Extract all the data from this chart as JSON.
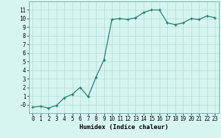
{
  "x": [
    0,
    1,
    2,
    3,
    4,
    5,
    6,
    7,
    8,
    9,
    10,
    11,
    12,
    13,
    14,
    15,
    16,
    17,
    18,
    19,
    20,
    21,
    22,
    23
  ],
  "y": [
    -0.3,
    -0.2,
    -0.4,
    -0.1,
    0.8,
    1.2,
    2.0,
    0.9,
    3.2,
    5.2,
    9.9,
    10.0,
    9.9,
    10.1,
    10.7,
    11.0,
    11.0,
    9.5,
    9.3,
    9.5,
    10.0,
    9.9,
    10.3,
    10.1
  ],
  "line_color": "#1a7a6e",
  "marker": "+",
  "bg_color": "#d6f5f0",
  "grid_color": "#b8ddd8",
  "xlabel": "Humidex (Indice chaleur)",
  "xlim": [
    -0.5,
    23.5
  ],
  "ylim": [
    -1,
    12
  ],
  "xticks": [
    0,
    1,
    2,
    3,
    4,
    5,
    6,
    7,
    8,
    9,
    10,
    11,
    12,
    13,
    14,
    15,
    16,
    17,
    18,
    19,
    20,
    21,
    22,
    23
  ],
  "xtick_labels": [
    "0",
    "1",
    "2",
    "3",
    "4",
    "5",
    "6",
    "7",
    "8",
    "9",
    "10",
    "11",
    "12",
    "13",
    "14",
    "15",
    "16",
    "17",
    "18",
    "19",
    "20",
    "21",
    "22",
    "23"
  ],
  "yticks": [
    0,
    1,
    2,
    3,
    4,
    5,
    6,
    7,
    8,
    9,
    10,
    11
  ],
  "ytick_labels": [
    "-0",
    "1",
    "2",
    "3",
    "4",
    "5",
    "6",
    "7",
    "8",
    "9",
    "10",
    "11"
  ],
  "tick_fontsize": 5.5,
  "xlabel_fontsize": 6.5
}
